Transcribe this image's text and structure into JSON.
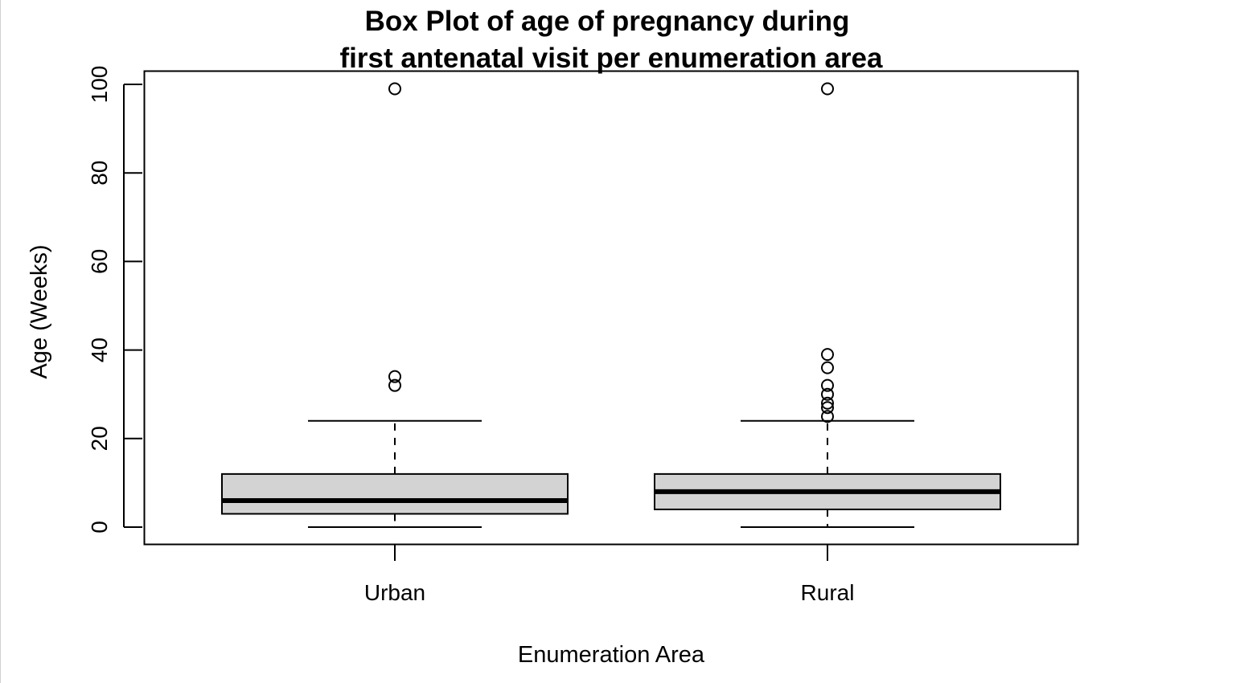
{
  "chart_data": {
    "type": "box",
    "title": [
      "Box Plot of age of pregnancy during",
      "first antenatal visit per enumeration area"
    ],
    "xlabel": "Enumeration Area",
    "ylabel": "Age (Weeks)",
    "categories": [
      "Urban",
      "Rural"
    ],
    "ylim": [
      -4,
      103
    ],
    "yticks": [
      0,
      20,
      40,
      60,
      80,
      100
    ],
    "ytick_labels": [
      "0",
      "20",
      "40",
      "60",
      "80",
      "100"
    ],
    "grid": false,
    "legend": "none",
    "colors": {
      "box_fill": "#d3d3d3",
      "stroke": "#000000"
    },
    "boxes": [
      {
        "name": "Urban",
        "whisker_low": 0,
        "q1": 3,
        "median": 6,
        "q3": 12,
        "whisker_high": 24,
        "outliers": [
          32,
          34,
          99
        ]
      },
      {
        "name": "Rural",
        "whisker_low": 0,
        "q1": 4,
        "median": 8,
        "q3": 12,
        "whisker_high": 24,
        "outliers": [
          25,
          27,
          28,
          30,
          32,
          36,
          39,
          99
        ]
      }
    ]
  }
}
